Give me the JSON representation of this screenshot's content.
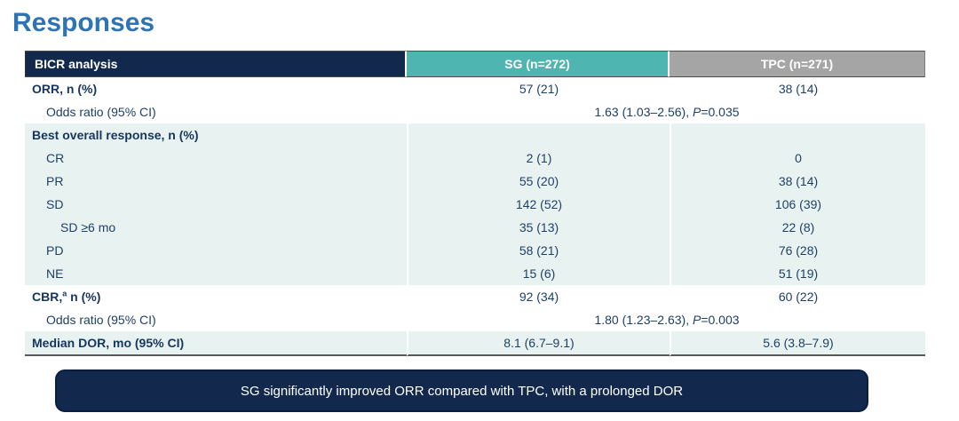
{
  "page": {
    "title": "Responses"
  },
  "colors": {
    "title_blue": "#2E74B5",
    "navy": "#12294D",
    "teal_header": "#4FB5B0",
    "gray_header": "#A5A5A5",
    "row_shade": "#E7F2F1",
    "body_text": "#1F4066"
  },
  "table": {
    "header": {
      "analysis": "BICR analysis",
      "sg": "SG (n=272)",
      "tpc": "TPC (n=271)"
    },
    "rows": [
      {
        "label": "ORR, n (%)",
        "sg": "57 (21)",
        "tpc": "38 (14)"
      },
      {
        "label": "Odds ratio (95% CI)",
        "merged_prefix": "1.63 (1.03–2.56), ",
        "merged_italic": "P",
        "merged_suffix": "=0.035"
      },
      {
        "label": "Best overall response, n (%)"
      },
      {
        "label": "CR",
        "sg": "2 (1)",
        "tpc": "0"
      },
      {
        "label": "PR",
        "sg": "55 (20)",
        "tpc": "38 (14)"
      },
      {
        "label": "SD",
        "sg": "142 (52)",
        "tpc": "106 (39)"
      },
      {
        "label": "SD ≥6 mo",
        "sg": "35 (13)",
        "tpc": "22 (8)"
      },
      {
        "label": "PD",
        "sg": "58 (21)",
        "tpc": "76 (28)"
      },
      {
        "label": "NE",
        "sg": "15 (6)",
        "tpc": "51 (19)"
      },
      {
        "label": "CBR,",
        "label_sup": "a",
        "label_suffix": " n (%)",
        "sg": "92 (34)",
        "tpc": "60 (22)"
      },
      {
        "label": "Odds ratio (95% CI)",
        "merged_prefix": "1.80 (1.23–2.63), ",
        "merged_italic": "P",
        "merged_suffix": "=0.003"
      },
      {
        "label": "Median DOR, mo (95% CI)",
        "sg": "8.1 (6.7–9.1)",
        "tpc": "5.6 (3.8–7.9)"
      }
    ]
  },
  "banner": {
    "text": "SG significantly improved ORR compared with TPC, with a prolonged DOR"
  }
}
